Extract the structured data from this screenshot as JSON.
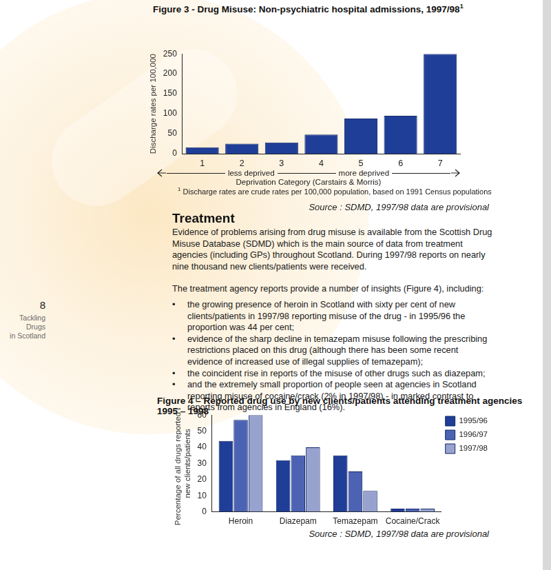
{
  "document": {
    "page_number": "8",
    "running_title": [
      "Tackling Drugs",
      "in Scotland"
    ],
    "heading": "Treatment",
    "paragraphs": [
      "Evidence of problems arising from drug misuse is available from the Scottish Drug Misuse Database (SDMD) which is the main source of data from treatment agencies (including GPs) throughout Scotland. During 1997/98 reports on nearly nine thousand new clients/patients were received.",
      "The treatment agency reports provide a number of insights (Figure 4), including:"
    ],
    "bullets": [
      "the growing presence of heroin in Scotland with sixty per cent of new clients/patients in 1997/98 reporting misuse of the drug - in 1995/96 the proportion was 44 per cent;",
      "evidence of the sharp decline in temazepam misuse following the prescribing restrictions placed on this drug (although there has been some recent evidence of increased use of illegal supplies of temazepam);",
      "the coincident rise in reports of the misuse of other drugs such as diazepam;",
      "and the extremely small proportion of people seen at agencies in Scotland reporting misuse of cocaine/crack (2% in 1997/98) - in marked contrast to reports from agencies in England (16%)."
    ]
  },
  "chart_data": [
    {
      "type": "bar",
      "title": "Figure 3 - Drug Misuse: Non-psychiatric hospital admissions, 1997/98",
      "title_mark": "1",
      "x_label": "Deprivation Category (Carstairs & Morris)",
      "y_label": "Discharge rates per 100,000",
      "annotations": [
        "less deprived",
        "more deprived"
      ],
      "categories": [
        "1",
        "2",
        "3",
        "4",
        "5",
        "6",
        "7"
      ],
      "values": [
        16,
        25,
        28,
        48,
        88,
        95,
        250
      ],
      "color": "#1f3e98",
      "ylim": [
        0,
        250
      ],
      "yticks": [
        0,
        50,
        100,
        150,
        200,
        250
      ],
      "grid": false,
      "footnote_mark": "1",
      "footnote": "Discharge rates are crude rates per 100,000 population, based on 1991 Census populations",
      "source": "Source : SDMD, 1997/98 data are provisional"
    },
    {
      "type": "bar",
      "title": "Figure 4 – Reported drug use by new clients/patients attending treatment agencies 1995 – 1998",
      "y_label": [
        "Percentage of all drugs reported by",
        "new clients/patients"
      ],
      "categories": [
        "Heroin",
        "Diazepam",
        "Temazepam",
        "Cocaine/Crack"
      ],
      "series": [
        {
          "name": "1995/96",
          "color": "#1f3e98",
          "values": [
            44,
            32,
            35,
            2
          ]
        },
        {
          "name": "1996/97",
          "color": "#4c63b4",
          "values": [
            57,
            35,
            25,
            2
          ]
        },
        {
          "name": "1997/98",
          "color": "#97a2cf",
          "values": [
            60,
            40,
            13,
            2
          ]
        }
      ],
      "ylim": [
        0,
        60
      ],
      "yticks": [
        0,
        10,
        20,
        30,
        40,
        50,
        60
      ],
      "legend": "top-right",
      "grid": false,
      "source": "Source : SDMD, 1997/98 data are provisional"
    }
  ]
}
